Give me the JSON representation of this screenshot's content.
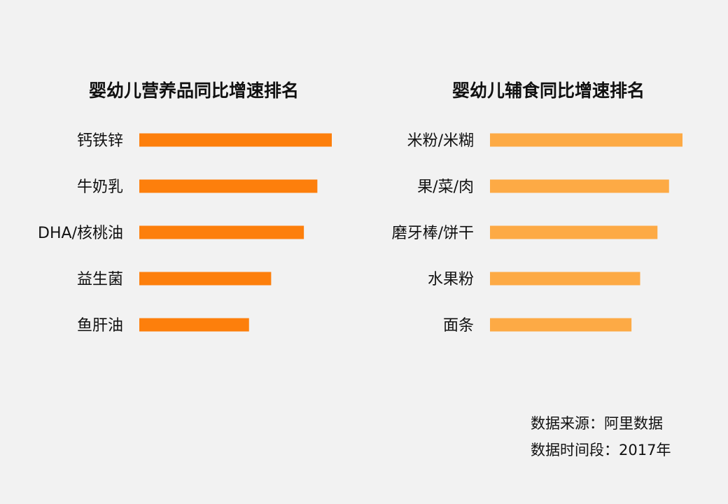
{
  "chart_data": [
    {
      "type": "bar",
      "orientation": "horizontal",
      "title": "婴幼儿营养品同比增速排名",
      "categories": [
        "钙铁锌",
        "牛奶乳",
        "DHA/核桃油",
        "益生菌",
        "鱼肝油"
      ],
      "values": [
        100,
        92.5,
        85.5,
        68.5,
        57
      ],
      "value_axis_shown": false,
      "color": "#fd7f0c"
    },
    {
      "type": "bar",
      "orientation": "horizontal",
      "title": "婴幼儿辅食同比增速排名",
      "categories": [
        "米粉/米糊",
        "果/菜/肉",
        "磨牙棒/饼干",
        "水果粉",
        "面条"
      ],
      "values": [
        100,
        93,
        87,
        78,
        73.5
      ],
      "value_axis_shown": false,
      "color": "#fdaa45"
    }
  ],
  "footer": {
    "source": "数据来源：阿里数据",
    "period": "数据时间段：2017年"
  }
}
